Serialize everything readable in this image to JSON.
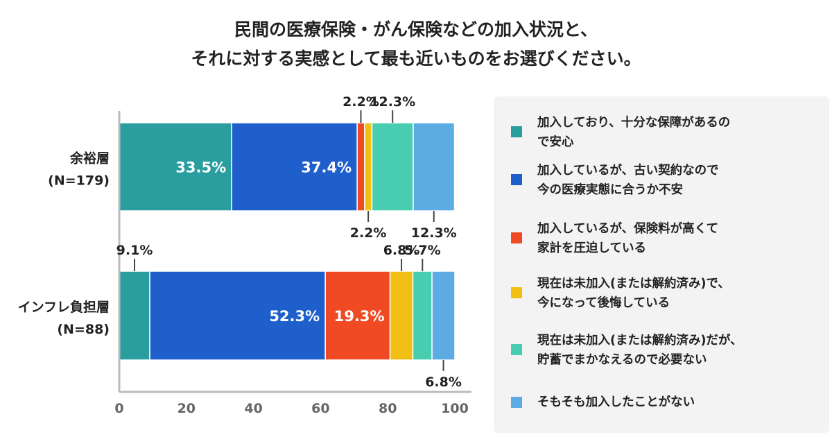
{
  "chart_data": {
    "type": "bar",
    "orientation": "horizontal",
    "stacked": true,
    "title_lines": [
      "民間の医療保険・がん保険などの加入状況と、",
      "それに対する実感として最も近いものをお選びください。"
    ],
    "categories": [
      {
        "lines": [
          "余裕層",
          "(N=179)"
        ]
      },
      {
        "lines": [
          "インフレ負担層",
          "(N=88)"
        ]
      }
    ],
    "series": [
      {
        "name_lines": [
          "加入しており、十分な保障があるの",
          "で安心"
        ],
        "color": "#2a9d9f",
        "values": [
          33.5,
          9.1
        ],
        "labels": [
          "33.5%",
          "9.1%"
        ]
      },
      {
        "name_lines": [
          "加入しているが、古い契約なので",
          "今の医療実態に合うか不安"
        ],
        "color": "#1f5fcc",
        "values": [
          37.4,
          52.3
        ],
        "labels": [
          "37.4%",
          "52.3%"
        ]
      },
      {
        "name_lines": [
          "加入しているが、保険料が高くて",
          "家計を圧迫している"
        ],
        "color": "#ef4a23",
        "values": [
          2.2,
          19.3
        ],
        "labels": [
          "2.2%",
          "19.3%"
        ]
      },
      {
        "name_lines": [
          "現在は未加入(または解約済み)で、",
          "今になって後悔している"
        ],
        "color": "#f2c014",
        "values": [
          2.2,
          6.8
        ],
        "labels": [
          "2.2%",
          "6.8%"
        ]
      },
      {
        "name_lines": [
          "現在は未加入(または解約済み)だが、",
          "貯蓄でまかなえるので必要ない"
        ],
        "color": "#48cdb0",
        "values": [
          12.3,
          5.7
        ],
        "labels": [
          "12.3%",
          "5.7%"
        ]
      },
      {
        "name_lines": [
          "そもそも加入したことがない"
        ],
        "color": "#5dabe3",
        "values": [
          12.3,
          6.8
        ],
        "labels": [
          "12.3%",
          "6.8%"
        ]
      }
    ],
    "xlim": [
      0,
      100
    ],
    "x_ticks": [
      "0",
      "20",
      "40",
      "60",
      "80",
      "100"
    ],
    "grid": false,
    "legend_position": "right",
    "label_placement": [
      [
        "inside",
        "inside",
        "above",
        "below",
        "above",
        "below"
      ],
      [
        "above",
        "inside",
        "inside",
        "above",
        "above",
        "below"
      ]
    ]
  }
}
